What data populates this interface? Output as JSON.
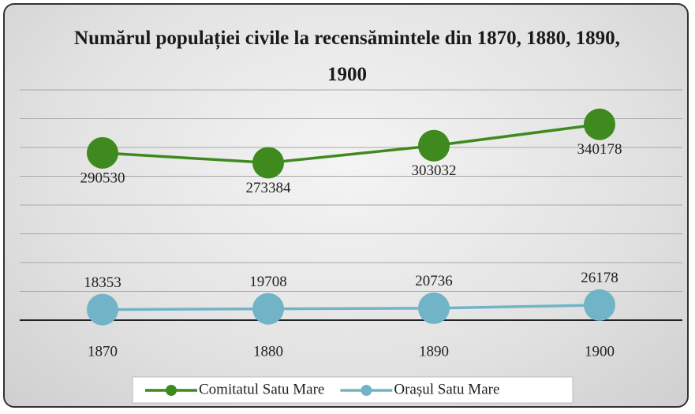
{
  "chart_data": {
    "type": "line",
    "title": "Numărul populației civile la recensămintele din 1870, 1880, 1890, 1900",
    "categories": [
      "1870",
      "1880",
      "1890",
      "1900"
    ],
    "series": [
      {
        "name": "Comitatul Satu Mare",
        "color": "#3f8a1f",
        "values": [
          290530,
          273384,
          303032,
          340178
        ]
      },
      {
        "name": "Orașul Satu Mare",
        "color": "#72b4c7",
        "values": [
          18353,
          19708,
          20736,
          26178
        ]
      }
    ],
    "ylim": [
      0,
      400000
    ],
    "yticks": [
      0,
      50000,
      100000,
      150000,
      200000,
      250000,
      300000,
      350000,
      400000
    ],
    "grid": true,
    "legend": "bottom"
  }
}
